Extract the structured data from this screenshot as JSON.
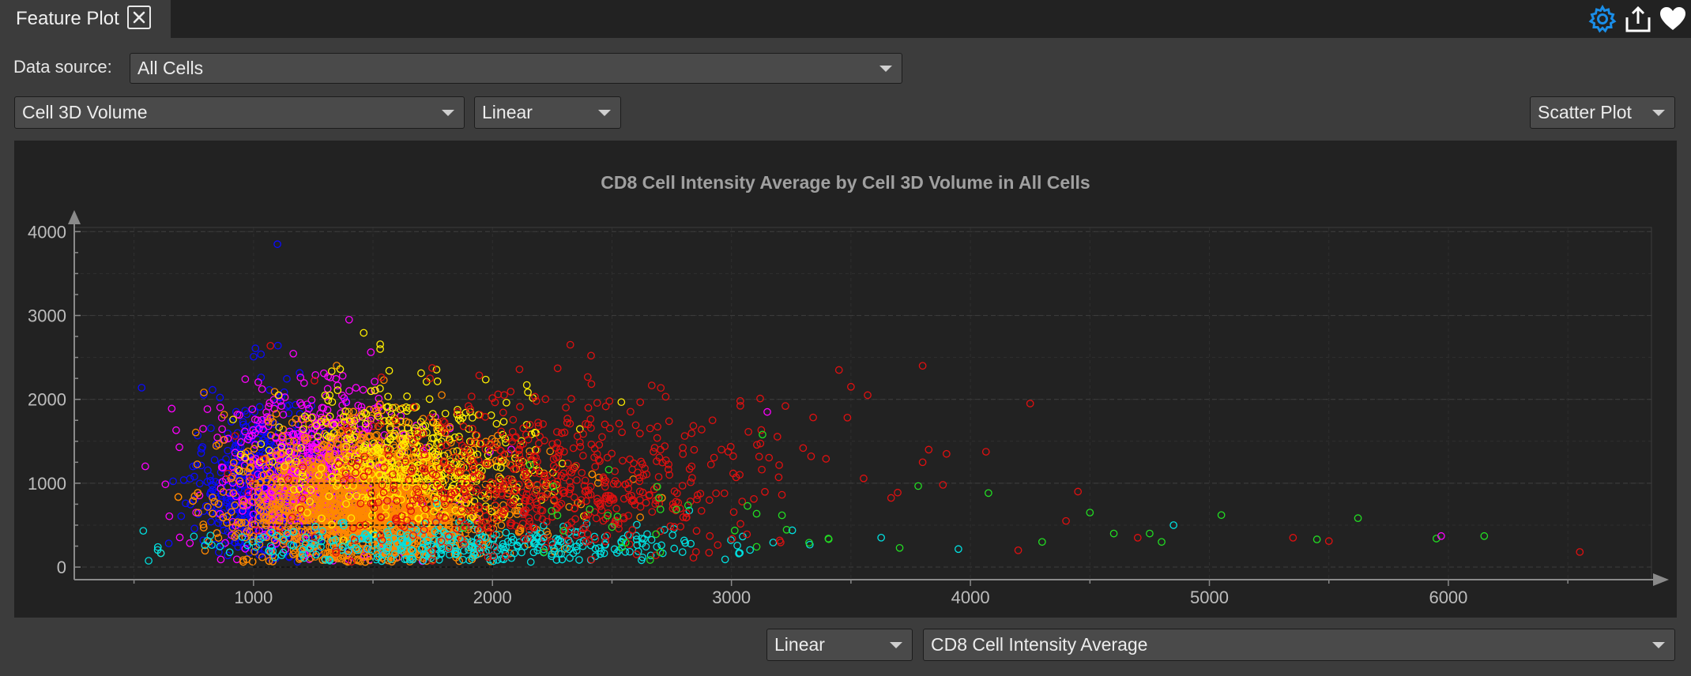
{
  "tab": {
    "title": "Feature Plot"
  },
  "top_icons": [
    "gear-icon",
    "export-icon",
    "heart-icon"
  ],
  "controls": {
    "data_source_label": "Data source:",
    "data_source_value": "All Cells",
    "x_feature": "Cell 3D Volume",
    "x_scale": "Linear",
    "plot_type": "Scatter Plot",
    "y_scale": "Linear",
    "y_feature": "CD8 Cell Intensity Average"
  },
  "colors": {
    "accent": "#1a8ee8",
    "series": [
      "#0a0aff",
      "#ff00ff",
      "#ff8800",
      "#ffee00",
      "#00e0e0",
      "#e01010",
      "#22dd22"
    ]
  },
  "chart_data": {
    "type": "scatter",
    "title": "CD8 Cell Intensity Average by Cell 3D Volume in All Cells",
    "xlabel": "",
    "ylabel": "",
    "xlim": [
      250,
      6850
    ],
    "ylim": [
      -150,
      4050
    ],
    "x_ticks": [
      1000,
      2000,
      3000,
      4000,
      5000,
      6000
    ],
    "y_ticks": [
      0,
      1000,
      2000,
      3000,
      4000
    ],
    "grid": true,
    "marker": "open-circle",
    "gated_region": {
      "x": [
        1000,
        2000
      ],
      "y": [
        0,
        1000
      ],
      "dividers_x": [
        1500
      ],
      "dividers_y": [
        500
      ]
    },
    "series": [
      {
        "color": "#0a0aff",
        "center": [
          1050,
          900
        ],
        "spread": [
          150,
          500
        ],
        "count": 700
      },
      {
        "color": "#ff00ff",
        "center": [
          1280,
          1000
        ],
        "spread": [
          220,
          520
        ],
        "count": 900
      },
      {
        "color": "#ff8800",
        "center": [
          1500,
          700
        ],
        "spread": [
          300,
          450
        ],
        "count": 2600
      },
      {
        "color": "#ffee00",
        "center": [
          1650,
          1200
        ],
        "spread": [
          300,
          480
        ],
        "count": 450
      },
      {
        "color": "#00e0e0",
        "center": [
          1900,
          250
        ],
        "spread": [
          550,
          150
        ],
        "count": 350
      },
      {
        "color": "#e01010",
        "center": [
          2250,
          950
        ],
        "spread": [
          500,
          550
        ],
        "count": 650
      },
      {
        "color": "#22dd22",
        "center": [
          2800,
          500
        ],
        "spread": [
          700,
          300
        ],
        "count": 35
      }
    ],
    "outliers": [
      {
        "x": 1100,
        "y": 3850,
        "color": "#0a0aff"
      },
      {
        "x": 1400,
        "y": 2950,
        "color": "#ff00ff"
      },
      {
        "x": 1530,
        "y": 2600,
        "color": "#ffee00"
      },
      {
        "x": 3450,
        "y": 2350,
        "color": "#e01010"
      },
      {
        "x": 3500,
        "y": 2150,
        "color": "#e01010"
      },
      {
        "x": 3570,
        "y": 2050,
        "color": "#e01010"
      },
      {
        "x": 3800,
        "y": 2400,
        "color": "#e01010"
      },
      {
        "x": 4250,
        "y": 1950,
        "color": "#e01010"
      },
      {
        "x": 3800,
        "y": 1250,
        "color": "#e01010"
      },
      {
        "x": 3900,
        "y": 1350,
        "color": "#e01010"
      },
      {
        "x": 3150,
        "y": 1850,
        "color": "#ff00ff"
      },
      {
        "x": 3130,
        "y": 1580,
        "color": "#22dd22"
      },
      {
        "x": 4200,
        "y": 200,
        "color": "#e01010"
      },
      {
        "x": 4300,
        "y": 300,
        "color": "#22dd22"
      },
      {
        "x": 4400,
        "y": 550,
        "color": "#e01010"
      },
      {
        "x": 4450,
        "y": 900,
        "color": "#e01010"
      },
      {
        "x": 4500,
        "y": 650,
        "color": "#22dd22"
      },
      {
        "x": 4600,
        "y": 400,
        "color": "#22dd22"
      },
      {
        "x": 4700,
        "y": 350,
        "color": "#e01010"
      },
      {
        "x": 4750,
        "y": 400,
        "color": "#22dd22"
      },
      {
        "x": 4800,
        "y": 300,
        "color": "#22dd22"
      },
      {
        "x": 4850,
        "y": 500,
        "color": "#00e0e0"
      },
      {
        "x": 5050,
        "y": 620,
        "color": "#22dd22"
      },
      {
        "x": 5350,
        "y": 350,
        "color": "#e01010"
      },
      {
        "x": 5450,
        "y": 330,
        "color": "#22dd22"
      },
      {
        "x": 5500,
        "y": 310,
        "color": "#e01010"
      },
      {
        "x": 5950,
        "y": 340,
        "color": "#22dd22"
      },
      {
        "x": 5970,
        "y": 370,
        "color": "#ff00ff"
      },
      {
        "x": 6150,
        "y": 370,
        "color": "#22dd22"
      },
      {
        "x": 6550,
        "y": 180,
        "color": "#e01010"
      }
    ]
  }
}
